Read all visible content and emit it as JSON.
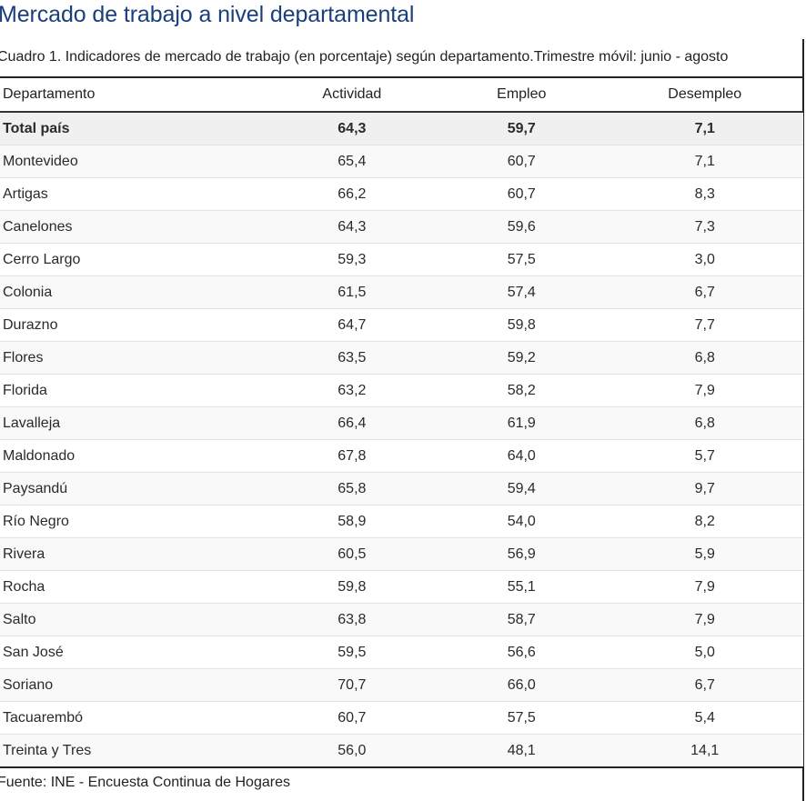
{
  "title": "Mercado de trabajo a nivel departamental",
  "caption": "Cuadro 1. Indicadores de mercado de trabajo (en porcentaje) según departamento.Trimestre móvil: junio - agosto",
  "table": {
    "headers": [
      "Departamento",
      "Actividad",
      "Empleo",
      "Desempleo"
    ],
    "rows": [
      {
        "departamento": "Total país",
        "actividad": "64,3",
        "empleo": "59,7",
        "desempleo": "7,1",
        "total": true
      },
      {
        "departamento": "Montevideo",
        "actividad": "65,4",
        "empleo": "60,7",
        "desempleo": "7,1"
      },
      {
        "departamento": "Artigas",
        "actividad": "66,2",
        "empleo": "60,7",
        "desempleo": "8,3"
      },
      {
        "departamento": "Canelones",
        "actividad": "64,3",
        "empleo": "59,6",
        "desempleo": "7,3"
      },
      {
        "departamento": "Cerro Largo",
        "actividad": "59,3",
        "empleo": "57,5",
        "desempleo": "3,0"
      },
      {
        "departamento": "Colonia",
        "actividad": "61,5",
        "empleo": "57,4",
        "desempleo": "6,7"
      },
      {
        "departamento": "Durazno",
        "actividad": "64,7",
        "empleo": "59,8",
        "desempleo": "7,7"
      },
      {
        "departamento": "Flores",
        "actividad": "63,5",
        "empleo": "59,2",
        "desempleo": "6,8"
      },
      {
        "departamento": "Florida",
        "actividad": "63,2",
        "empleo": "58,2",
        "desempleo": "7,9"
      },
      {
        "departamento": "Lavalleja",
        "actividad": "66,4",
        "empleo": "61,9",
        "desempleo": "6,8"
      },
      {
        "departamento": "Maldonado",
        "actividad": "67,8",
        "empleo": "64,0",
        "desempleo": "5,7"
      },
      {
        "departamento": "Paysandú",
        "actividad": "65,8",
        "empleo": "59,4",
        "desempleo": "9,7"
      },
      {
        "departamento": "Río Negro",
        "actividad": "58,9",
        "empleo": "54,0",
        "desempleo": "8,2"
      },
      {
        "departamento": "Rivera",
        "actividad": "60,5",
        "empleo": "56,9",
        "desempleo": "5,9"
      },
      {
        "departamento": "Rocha",
        "actividad": "59,8",
        "empleo": "55,1",
        "desempleo": "7,9"
      },
      {
        "departamento": "Salto",
        "actividad": "63,8",
        "empleo": "58,7",
        "desempleo": "7,9"
      },
      {
        "departamento": "San José",
        "actividad": "59,5",
        "empleo": "56,6",
        "desempleo": "5,0"
      },
      {
        "departamento": "Soriano",
        "actividad": "70,7",
        "empleo": "66,0",
        "desempleo": "6,7"
      },
      {
        "departamento": "Tacuarembó",
        "actividad": "60,7",
        "empleo": "57,5",
        "desempleo": "5,4"
      },
      {
        "departamento": "Treinta y Tres",
        "actividad": "56,0",
        "empleo": "48,1",
        "desempleo": "14,1"
      }
    ]
  },
  "source": "Fuente: INE - Encuesta Continua de Hogares",
  "colors": {
    "title": "#1a3f7c",
    "total_row_bg": "#f0f0f0",
    "stripe_bg": "#f9f9f9"
  }
}
